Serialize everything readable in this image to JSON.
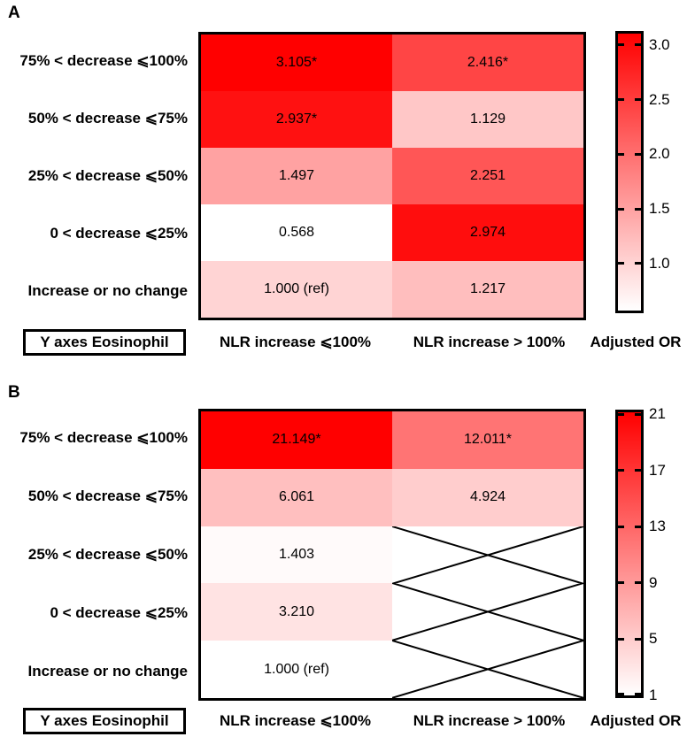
{
  "colors": {
    "heat_max": "#ff0000",
    "heat_min": "#ffffff",
    "border": "#000000",
    "text": "#000000",
    "background": "#ffffff"
  },
  "chart_data": [
    {
      "type": "heatmap",
      "panel": "A",
      "x_categories": [
        "NLR increase ⩽100%",
        "NLR increase > 100%"
      ],
      "y_categories": [
        "75% < decrease ⩽100%",
        "50% < decrease ⩽75%",
        "25% < decrease ⩽50%",
        "0 < decrease ⩽25%",
        "Increase or no change"
      ],
      "y_axis_box_label": "Y axes Eosinophil",
      "values": [
        [
          3.105,
          2.416
        ],
        [
          2.937,
          1.129
        ],
        [
          1.497,
          2.251
        ],
        [
          0.568,
          2.974
        ],
        [
          1.0,
          1.217
        ]
      ],
      "cell_labels": [
        [
          "3.105*",
          "2.416*"
        ],
        [
          "2.937*",
          "1.129"
        ],
        [
          "1.497",
          "2.251"
        ],
        [
          "0.568",
          "2.974"
        ],
        [
          "1.000 (ref)",
          "1.217"
        ]
      ],
      "crossed_cells": [],
      "colorbar": {
        "label": "Adjusted OR",
        "min": 0.568,
        "max": 3.105,
        "tick_labels": [
          "3.0",
          "2.5",
          "2.0",
          "1.5",
          "1.0"
        ],
        "tick_values": [
          3.0,
          2.5,
          2.0,
          1.5,
          1.0
        ],
        "colormap": "white-to-red",
        "orientation": "vertical"
      }
    },
    {
      "type": "heatmap",
      "panel": "B",
      "x_categories": [
        "NLR increase ⩽100%",
        "NLR increase > 100%"
      ],
      "y_categories": [
        "75% < decrease ⩽100%",
        "50% < decrease ⩽75%",
        "25% < decrease ⩽50%",
        "0 < decrease ⩽25%",
        "Increase or no change"
      ],
      "y_axis_box_label": "Y axes Eosinophil",
      "values": [
        [
          21.149,
          12.011
        ],
        [
          6.061,
          4.924
        ],
        [
          1.403,
          null
        ],
        [
          3.21,
          null
        ],
        [
          1.0,
          null
        ]
      ],
      "cell_labels": [
        [
          "21.149*",
          "12.011*"
        ],
        [
          "6.061",
          "4.924"
        ],
        [
          "1.403",
          ""
        ],
        [
          "3.210",
          ""
        ],
        [
          "1.000 (ref)",
          ""
        ]
      ],
      "crossed_cells": [
        [
          2,
          1
        ],
        [
          3,
          1
        ],
        [
          4,
          1
        ]
      ],
      "colorbar": {
        "label": "Adjusted OR",
        "min": 1.0,
        "max": 21.149,
        "tick_labels": [
          "21",
          "17",
          "13",
          "9",
          "5",
          "1"
        ],
        "tick_values": [
          21,
          17,
          13,
          9,
          5,
          1
        ],
        "colormap": "white-to-red",
        "orientation": "vertical"
      }
    }
  ]
}
